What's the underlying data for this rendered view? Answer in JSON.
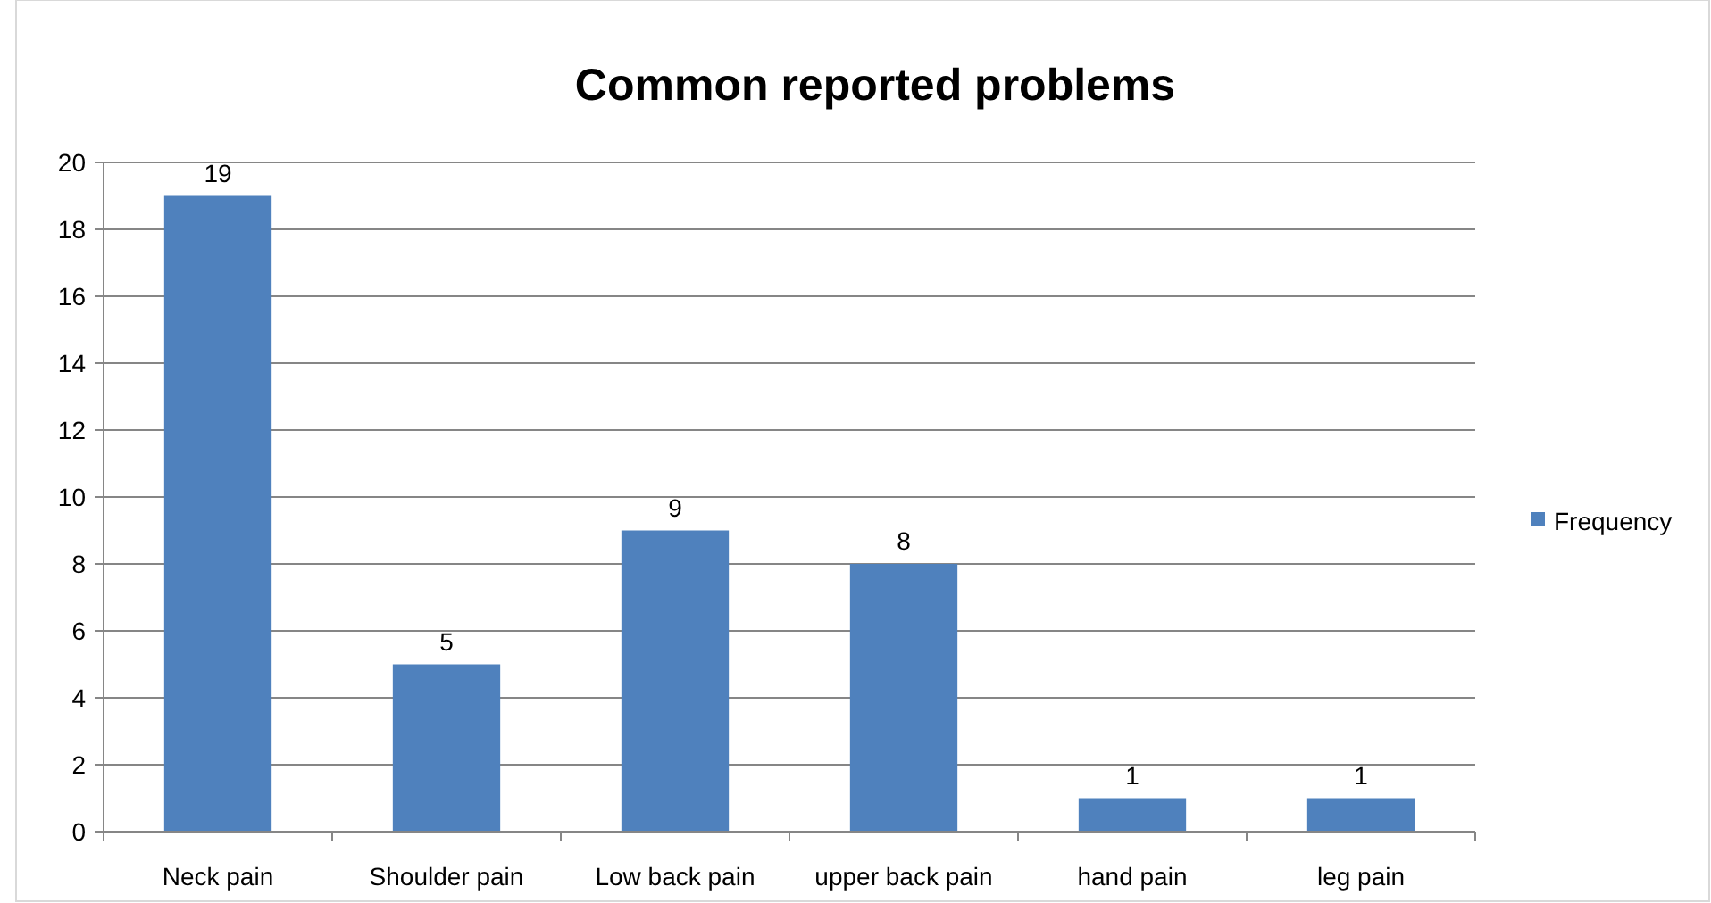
{
  "chart_data": {
    "type": "bar",
    "title": "Common reported problems",
    "categories": [
      "Neck pain",
      "Shoulder pain",
      "Low back pain",
      "upper back pain",
      "hand pain",
      "leg pain"
    ],
    "series": [
      {
        "name": "Frequency",
        "color": "#4f81bd",
        "values": [
          19,
          5,
          9,
          8,
          1,
          1
        ]
      }
    ],
    "ylim": [
      0,
      20
    ],
    "yticks": [
      0,
      2,
      4,
      6,
      8,
      10,
      12,
      14,
      16,
      18,
      20
    ],
    "grid": "y",
    "legend": "right",
    "data_labels": true
  }
}
